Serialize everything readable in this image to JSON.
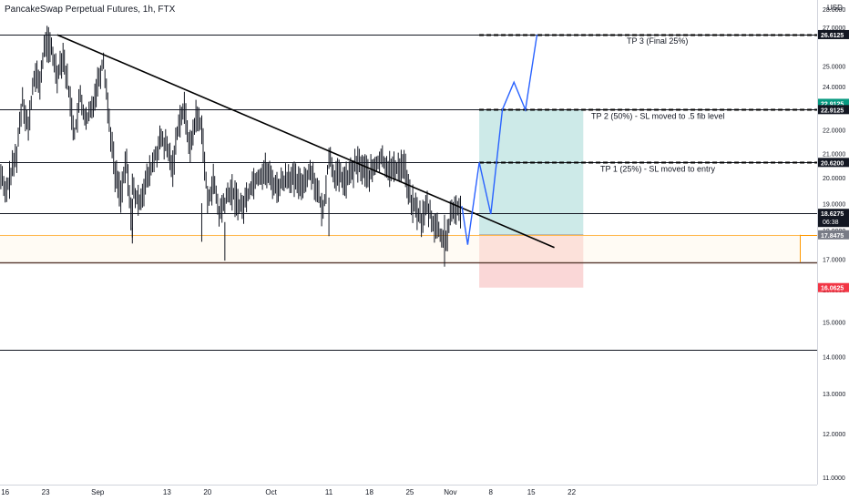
{
  "header": {
    "title": "PancakeSwap Perpetual Futures, 1h, FTX"
  },
  "currency": "USD",
  "colors": {
    "background": "#ffffff",
    "candles": "#131722",
    "trendline": "#000000",
    "projection": "#2962ff",
    "profit_zone": "#b2dfdb",
    "loss_zone": "#f8c6c6",
    "support_zone": "#ff9800",
    "tp3_badge": "#131722",
    "tp2_badge_top": "#089981",
    "current_badge": "#131722",
    "entry_badge": "#787b86",
    "sl_badge": "#f23645"
  },
  "chart_data": {
    "type": "line",
    "title": "PancakeSwap Perpetual Futures, 1h, FTX",
    "xlabel": "",
    "ylabel": "",
    "ylim": [
      10.7,
      28.0
    ],
    "y_scale": "log",
    "x_range": [
      "2021-08-14",
      "2021-11-26"
    ],
    "yticks": [
      "11.0000",
      "12.0000",
      "13.0000",
      "14.0000",
      "15.0000",
      "16.0000",
      "17.0000",
      "18.0000",
      "19.0000",
      "20.0000",
      "21.0000",
      "22.0000",
      "24.0000",
      "25.0000",
      "27.0000",
      "28.0000"
    ],
    "xticks": [
      {
        "label": "16",
        "date": "2021-08-16"
      },
      {
        "label": "23",
        "date": "2021-08-23"
      },
      {
        "label": "Sep",
        "date": "2021-09-01"
      },
      {
        "label": "13",
        "date": "2021-09-13"
      },
      {
        "label": "20",
        "date": "2021-09-20"
      },
      {
        "label": "Oct",
        "date": "2021-10-01"
      },
      {
        "label": "11",
        "date": "2021-10-11"
      },
      {
        "label": "18",
        "date": "2021-10-18"
      },
      {
        "label": "25",
        "date": "2021-10-25"
      },
      {
        "label": "Nov",
        "date": "2021-11-01"
      },
      {
        "label": "8",
        "date": "2021-11-08"
      },
      {
        "label": "15",
        "date": "2021-11-15"
      },
      {
        "label": "22",
        "date": "2021-11-22"
      }
    ],
    "price_series": {
      "name": "",
      "x": [
        "2021-08-14",
        "2021-08-15",
        "2021-08-16",
        "2021-08-18",
        "2021-08-19",
        "2021-08-20",
        "2021-08-21",
        "2021-08-22",
        "2021-08-23",
        "2021-08-24",
        "2021-08-25",
        "2021-08-26",
        "2021-08-27",
        "2021-08-28",
        "2021-08-29",
        "2021-08-30",
        "2021-08-31",
        "2021-09-01",
        "2021-09-02",
        "2021-09-03",
        "2021-09-04",
        "2021-09-05",
        "2021-09-06",
        "2021-09-07",
        "2021-09-07",
        "2021-09-08",
        "2021-09-10",
        "2021-09-12",
        "2021-09-13",
        "2021-09-14",
        "2021-09-15",
        "2021-09-16",
        "2021-09-17",
        "2021-09-18",
        "2021-09-19",
        "2021-09-20",
        "2021-09-21",
        "2021-09-22",
        "2021-09-24",
        "2021-09-26",
        "2021-09-27",
        "2021-09-28",
        "2021-09-30",
        "2021-10-02",
        "2021-10-04",
        "2021-10-06",
        "2021-10-08",
        "2021-10-10",
        "2021-10-11",
        "2021-10-12",
        "2021-10-14",
        "2021-10-16",
        "2021-10-18",
        "2021-10-20",
        "2021-10-21",
        "2021-10-22",
        "2021-10-24",
        "2021-10-25",
        "2021-10-26",
        "2021-10-27",
        "2021-10-28",
        "2021-10-29",
        "2021-10-30",
        "2021-10-31",
        "2021-11-01",
        "2021-11-02",
        "2021-11-03"
      ],
      "y": [
        19.6,
        20.5,
        19.3,
        21.0,
        23.5,
        22.0,
        24.5,
        24.2,
        26.3,
        25.8,
        24.6,
        25.6,
        23.8,
        21.8,
        23.5,
        22.3,
        23.0,
        24.2,
        25.3,
        22.4,
        20.2,
        19.4,
        20.6,
        17.9,
        19.6,
        19.0,
        20.2,
        21.6,
        21.2,
        20.4,
        22.4,
        22.9,
        21.2,
        22.6,
        22.2,
        19.0,
        19.9,
        18.6,
        19.5,
        18.8,
        19.4,
        19.9,
        20.3,
        19.6,
        20.1,
        19.7,
        20.3,
        18.6,
        20.9,
        20.1,
        19.9,
        20.6,
        20.1,
        20.8,
        20.5,
        20.3,
        20.6,
        19.2,
        18.8,
        18.4,
        18.9,
        18.3,
        18.0,
        17.4,
        18.4,
        18.9,
        18.6
      ]
    },
    "trendline": {
      "x": [
        "2021-08-25",
        "2021-11-19"
      ],
      "y": [
        26.6,
        17.4
      ]
    },
    "projection": {
      "name": "",
      "x": [
        "2021-11-03",
        "2021-11-04",
        "2021-11-06",
        "2021-11-08",
        "2021-11-10",
        "2021-11-12",
        "2021-11-14",
        "2021-11-16"
      ],
      "y": [
        18.9,
        17.5,
        20.62,
        18.6,
        22.9125,
        24.2,
        22.9,
        26.6125
      ]
    },
    "levels": [
      {
        "price": 26.6125,
        "style": "solid"
      },
      {
        "price": 22.9125,
        "style": "solid"
      },
      {
        "price": 20.62,
        "style": "solid"
      },
      {
        "price": 18.6275,
        "style": "solid"
      },
      {
        "price": 17.8475,
        "style": "orange"
      },
      {
        "price": 16.9,
        "style": "dark"
      },
      {
        "price": 14.2,
        "style": "solid"
      }
    ],
    "dashed_levels": [
      {
        "price": 26.6125,
        "from": "2021-11-06"
      },
      {
        "price": 22.9125,
        "from": "2021-11-06"
      },
      {
        "price": 20.62,
        "from": "2021-11-06"
      }
    ],
    "position": {
      "from": "2021-11-06",
      "to": "2021-11-24",
      "target": 22.9125,
      "entry": 17.8475,
      "stop": 16.0625
    },
    "annotations": [
      {
        "text": "TP 3 (Final 25%)",
        "price": 26.6125
      },
      {
        "text": "TP 2 (50%) - SL moved to .5 fib level",
        "price": 22.9125
      },
      {
        "text": "TP 1 (25%) - SL moved to entry",
        "price": 20.62
      }
    ],
    "price_labels": [
      {
        "text": "26.6125",
        "price": 26.6125,
        "color": "#131722"
      },
      {
        "text": "22.9125",
        "price": 23.2,
        "color": "#089981"
      },
      {
        "text": "22.9125",
        "price": 22.9125,
        "color": "#131722"
      },
      {
        "text": "20.6200",
        "price": 20.62,
        "color": "#131722"
      },
      {
        "text": "18.6275",
        "price": 18.6275,
        "color": "#131722",
        "sub": "06:38"
      },
      {
        "text": "17.8475",
        "price": 17.8475,
        "color": "#787b86"
      },
      {
        "text": "16.0625",
        "price": 16.0625,
        "color": "#f23645"
      }
    ],
    "grid": false,
    "legend": "none"
  }
}
